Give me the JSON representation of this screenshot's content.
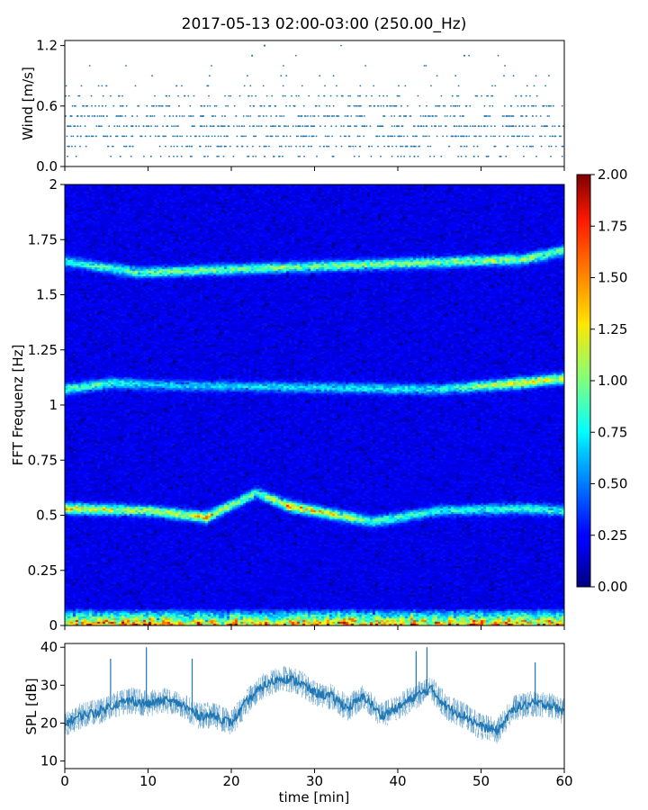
{
  "figure": {
    "title": "2017-05-13 02:00-03:00 (250.00_Hz)"
  },
  "chart_data": [
    {
      "type": "scatter",
      "panel": "wind",
      "ylabel": "Wind [m/s]",
      "ylim": [
        0,
        1.25
      ],
      "yticks": [
        "0.0",
        "0.6",
        "1.2"
      ],
      "ytick_values": [
        0,
        0.6,
        1.2
      ],
      "xlim": [
        0,
        60
      ],
      "grid": false,
      "marker_color": "#1f77b4",
      "levels": [
        0.1,
        0.2,
        0.3,
        0.4,
        0.5,
        0.6,
        0.7,
        0.8,
        0.9,
        1.0,
        1.1,
        1.2
      ],
      "level_density": [
        0.28,
        0.55,
        0.8,
        0.82,
        0.72,
        0.55,
        0.3,
        0.12,
        0.05,
        0.03,
        0.01,
        0.005
      ],
      "notable_points": [
        {
          "x": 24,
          "y": 1.2
        },
        {
          "x": 48,
          "y": 1.1
        },
        {
          "x": 22.5,
          "y": 1.1
        }
      ]
    },
    {
      "type": "heatmap",
      "panel": "spectrogram",
      "ylabel": "FFT Frequenz [Hz]",
      "ylim": [
        0,
        2
      ],
      "yticks": [
        "0",
        "0.25",
        "0.5",
        "0.75",
        "1",
        "1.25",
        "1.5",
        "1.75",
        "2"
      ],
      "ytick_values": [
        0,
        0.25,
        0.5,
        0.75,
        1,
        1.25,
        1.5,
        1.75,
        2
      ],
      "xlim": [
        0,
        60
      ],
      "colormap": "jet",
      "colorbar": {
        "range": [
          0,
          2
        ],
        "ticks": [
          "0.00",
          "0.25",
          "0.50",
          "0.75",
          "1.00",
          "1.25",
          "1.50",
          "1.75",
          "2.00"
        ],
        "tick_values": [
          0,
          0.25,
          0.5,
          0.75,
          1,
          1.25,
          1.5,
          1.75,
          2
        ]
      },
      "features": [
        {
          "desc": "low-frequency band",
          "freq_range": [
            0,
            0.08
          ],
          "level": 1.5
        },
        {
          "desc": "band near 0.5 Hz",
          "points": [
            [
              0,
              0.53,
              1.2
            ],
            [
              10,
              0.52,
              0.9
            ],
            [
              17,
              0.49,
              1.2
            ],
            [
              23,
              0.6,
              0.7
            ],
            [
              27,
              0.54,
              1.3
            ],
            [
              37,
              0.47,
              0.8
            ],
            [
              45,
              0.52,
              0.6
            ],
            [
              55,
              0.53,
              0.7
            ],
            [
              60,
              0.52,
              0.7
            ]
          ]
        },
        {
          "desc": "band near 1.1 Hz",
          "points": [
            [
              0,
              1.07,
              0.8
            ],
            [
              6,
              1.1,
              0.7
            ],
            [
              10,
              1.09,
              0.5
            ],
            [
              45,
              1.07,
              0.6
            ],
            [
              55,
              1.1,
              1.2
            ],
            [
              60,
              1.12,
              1.0
            ]
          ]
        },
        {
          "desc": "band near 1.6 Hz",
          "points": [
            [
              0,
              1.65,
              0.6
            ],
            [
              9,
              1.6,
              0.8
            ],
            [
              55,
              1.66,
              0.9
            ],
            [
              60,
              1.7,
              0.8
            ]
          ]
        }
      ]
    },
    {
      "type": "line",
      "panel": "spl",
      "ylabel": "SPL [dB]",
      "xlabel": "time [min]",
      "ylim": [
        8,
        41
      ],
      "yticks": [
        "10",
        "20",
        "30",
        "40"
      ],
      "ytick_values": [
        10,
        20,
        30,
        40
      ],
      "xlim": [
        0,
        60
      ],
      "xticks": [
        "0",
        "10",
        "20",
        "30",
        "40",
        "50",
        "60"
      ],
      "xtick_values": [
        0,
        10,
        20,
        30,
        40,
        50,
        60
      ],
      "grid": false,
      "line_color": "#1f77b4",
      "x": [
        0,
        2,
        4,
        6,
        8,
        10,
        12,
        14,
        16,
        18,
        20,
        22,
        24,
        26,
        28,
        30,
        32,
        34,
        36,
        38,
        40,
        42,
        44,
        46,
        48,
        50,
        52,
        54,
        56,
        58,
        60
      ],
      "y": [
        20,
        22,
        23,
        25,
        26,
        25,
        26,
        25,
        22,
        22,
        20,
        26,
        30,
        32,
        31,
        28,
        27,
        24,
        27,
        22,
        24,
        27,
        29,
        24,
        22,
        19,
        18,
        24,
        25,
        25,
        23
      ],
      "spikes": [
        {
          "x": 5.5,
          "y": 37
        },
        {
          "x": 9.8,
          "y": 40
        },
        {
          "x": 15.3,
          "y": 37
        },
        {
          "x": 42.2,
          "y": 39
        },
        {
          "x": 43.5,
          "y": 40
        },
        {
          "x": 56.5,
          "y": 36
        }
      ]
    }
  ]
}
